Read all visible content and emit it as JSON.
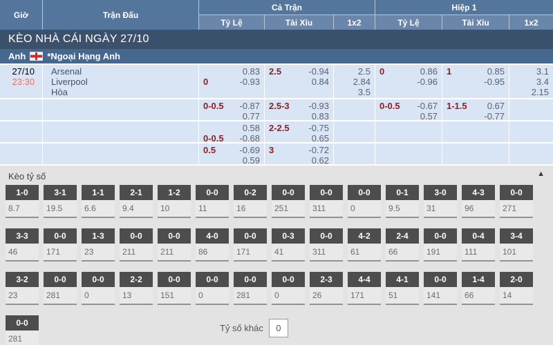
{
  "header": {
    "time": "Giờ",
    "match": "Trận Đấu",
    "full_time": "Cả Trận",
    "first_half": "Hiệp 1",
    "handicap": "Tỷ Lệ",
    "over_under": "Tài Xỉu",
    "one_x_two": "1x2"
  },
  "day_bar": {
    "title": "KÈO NHÀ CÁI NGÀY 27/10"
  },
  "league_bar": {
    "country": "Anh",
    "flag_icon": "england-flag",
    "name": "*Ngoại Hạng Anh"
  },
  "match": {
    "date": "27/10",
    "time": "23:30",
    "home": "Arsenal",
    "away": "Liverpool",
    "draw": "Hòa",
    "rows": [
      {
        "ft_hdp": {
          "l1": "",
          "v1": "0.83",
          "l2": "0",
          "v2": "-0.93"
        },
        "ft_ou": {
          "l1": "2.5",
          "v1": "-0.94",
          "l2": "",
          "v2": "0.84"
        },
        "ft_1x2": {
          "v1": "2.5",
          "v2": "2.84",
          "v3": "3.5"
        },
        "h1_hdp": {
          "l1": "0",
          "v1": "0.86",
          "l2": "",
          "v2": "-0.96"
        },
        "h1_ou": {
          "l1": "1",
          "v1": "0.85",
          "l2": "",
          "v2": "-0.95"
        },
        "h1_1x2": {
          "v1": "3.1",
          "v2": "3.4",
          "v3": "2.15"
        }
      },
      {
        "ft_hdp": {
          "l1": "0-0.5",
          "v1": "-0.87",
          "l2": "",
          "v2": "0.77"
        },
        "ft_ou": {
          "l1": "2.5-3",
          "v1": "-0.93",
          "l2": "",
          "v2": "0.83"
        },
        "h1_hdp": {
          "l1": "0-0.5",
          "v1": "-0.67",
          "l2": "",
          "v2": "0.57"
        },
        "h1_ou": {
          "l1": "1-1.5",
          "v1": "0.67",
          "l2": "",
          "v2": "-0.77"
        }
      },
      {
        "ft_hdp": {
          "l1": "",
          "v1": "0.58",
          "l2": "0-0.5",
          "v2": "-0.68"
        },
        "ft_ou": {
          "l1": "2-2.5",
          "v1": "-0.75",
          "l2": "",
          "v2": "0.65"
        }
      },
      {
        "ft_hdp": {
          "l1": "0.5",
          "v1": "-0.69",
          "l2": "",
          "v2": "0.59"
        },
        "ft_ou": {
          "l1": "3",
          "v1": "-0.72",
          "l2": "",
          "v2": "0.62"
        }
      }
    ]
  },
  "scores": {
    "title": "Kèo tỷ số",
    "collapse_icon": "▲",
    "rows": [
      [
        {
          "s": "1-0",
          "o": "8.7"
        },
        {
          "s": "3-1",
          "o": "19.5"
        },
        {
          "s": "1-1",
          "o": "6.6"
        },
        {
          "s": "2-1",
          "o": "9.4"
        },
        {
          "s": "1-2",
          "o": "10"
        },
        {
          "s": "0-0",
          "o": "11"
        },
        {
          "s": "0-2",
          "o": "16"
        },
        {
          "s": "0-0",
          "o": "251"
        },
        {
          "s": "0-0",
          "o": "311"
        },
        {
          "s": "0-0",
          "o": "0"
        },
        {
          "s": "0-1",
          "o": "9.5"
        },
        {
          "s": "3-0",
          "o": "31"
        },
        {
          "s": "4-3",
          "o": "96"
        },
        {
          "s": "0-0",
          "o": "271"
        }
      ],
      [
        {
          "s": "3-3",
          "o": "46"
        },
        {
          "s": "0-0",
          "o": "171"
        },
        {
          "s": "1-3",
          "o": "23"
        },
        {
          "s": "0-0",
          "o": "211"
        },
        {
          "s": "0-0",
          "o": "211"
        },
        {
          "s": "4-0",
          "o": "86"
        },
        {
          "s": "0-0",
          "o": "171"
        },
        {
          "s": "0-3",
          "o": "41"
        },
        {
          "s": "0-0",
          "o": "311"
        },
        {
          "s": "4-2",
          "o": "61"
        },
        {
          "s": "2-4",
          "o": "66"
        },
        {
          "s": "0-0",
          "o": "191"
        },
        {
          "s": "0-4",
          "o": "111"
        },
        {
          "s": "3-4",
          "o": "101"
        }
      ],
      [
        {
          "s": "3-2",
          "o": "23"
        },
        {
          "s": "0-0",
          "o": "281"
        },
        {
          "s": "0-0",
          "o": "0"
        },
        {
          "s": "2-2",
          "o": "13"
        },
        {
          "s": "0-0",
          "o": "151"
        },
        {
          "s": "0-0",
          "o": "0"
        },
        {
          "s": "0-0",
          "o": "281"
        },
        {
          "s": "0-0",
          "o": "0"
        },
        {
          "s": "2-3",
          "o": "26"
        },
        {
          "s": "4-4",
          "o": "171"
        },
        {
          "s": "4-1",
          "o": "51"
        },
        {
          "s": "0-0",
          "o": "141"
        },
        {
          "s": "1-4",
          "o": "66"
        },
        {
          "s": "2-0",
          "o": "14"
        }
      ],
      [
        {
          "s": "0-0",
          "o": "281"
        }
      ]
    ],
    "other_label": "Tỷ số khác",
    "other_value": "0"
  },
  "colors": {
    "header_blue": "#54759c",
    "subheader_blue": "#6a87ab",
    "navy_bar": "#3a506b",
    "league_bar": "#46688f",
    "row_bg": "#d9e5f5",
    "handicap_red": "#8e2023",
    "odds_gray": "#5a6170",
    "time_red": "#f26d66",
    "section_bg": "#e3e3e3",
    "score_label_bg": "#4d4d4d"
  }
}
